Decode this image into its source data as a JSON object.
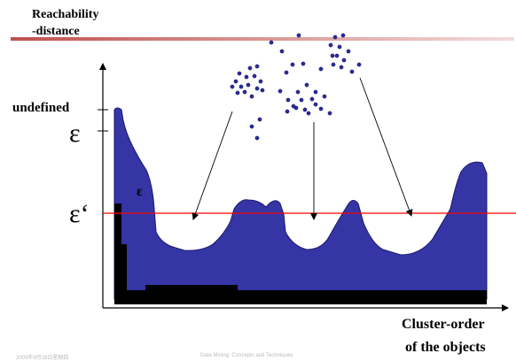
{
  "header": {
    "title_line1": "Reachability",
    "title_line2": "-distance",
    "bar_gradient": [
      "#c0504d",
      "#f2dcdb"
    ]
  },
  "axis": {
    "undefined_label": "undefined",
    "epsilon_label": "ε",
    "epsilon_prime_label": "ε‘",
    "epsilon_inside_label": "ε",
    "x_label_line1": "Cluster-order",
    "x_label_line2": "of the objects"
  },
  "footer": {
    "date": "2009年9月28日星期四",
    "course": "Data Mining: Concepts and Techniques"
  },
  "colors": {
    "plot_fill": "#3535a5",
    "threshold_line": "#ff0000",
    "point_fill": "#2a2aa0"
  }
}
